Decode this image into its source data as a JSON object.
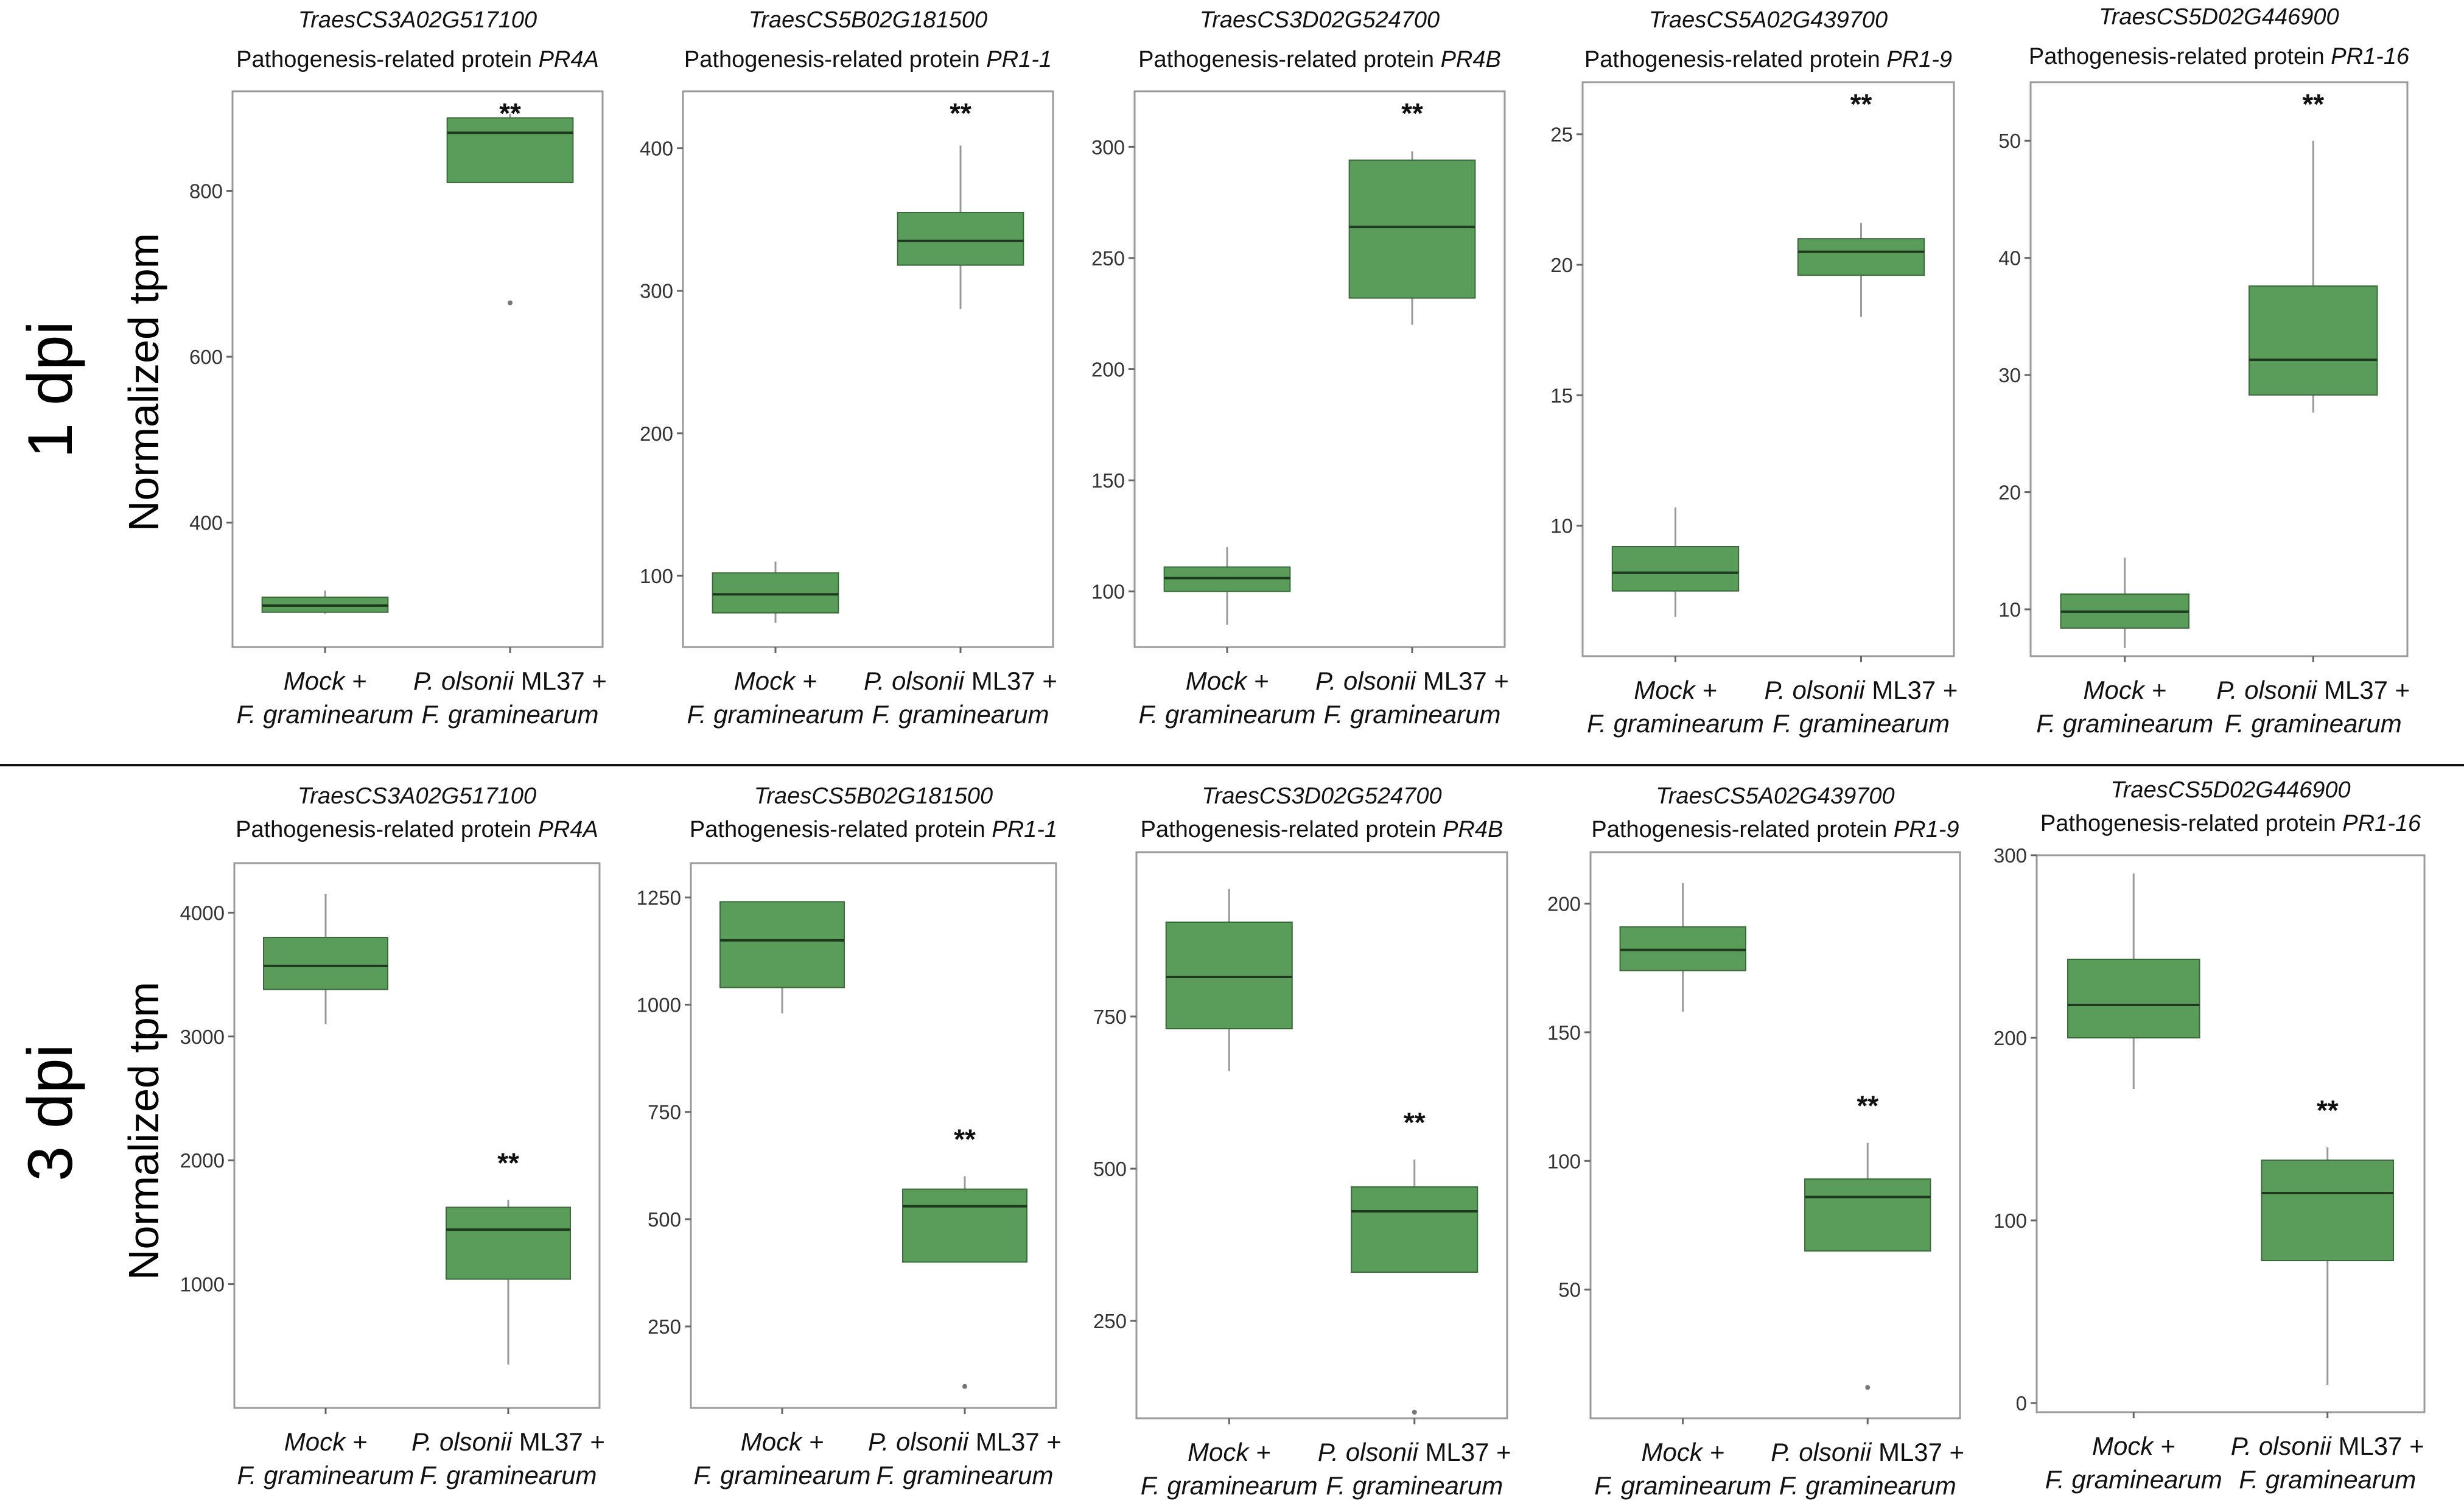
{
  "figure": {
    "row_labels": [
      "1 dpi",
      "3 dpi"
    ],
    "ylabel": "Normalized tpm",
    "box_color": "#5a9c5a",
    "box_edge": "#3a6a3a",
    "divider_color": "#111111"
  },
  "chart_data": [
    {
      "type": "box",
      "title": "TraesCS3A02G517100",
      "subtitle_prefix": "Pathogenesis-related protein ",
      "subtitle_gene": "PR4A",
      "ylim": [
        250,
        920
      ],
      "yticks": [
        400,
        600,
        800
      ],
      "significance": "**",
      "categories": [
        {
          "line1": "Mock +",
          "line2": "F. graminearum"
        },
        {
          "line1_italic": "P. olsonii",
          "line1_rest": " ML37 +",
          "line2": "F. graminearum"
        }
      ],
      "boxes": [
        {
          "min": 290,
          "q1": 292,
          "median": 300,
          "q3": 310,
          "max": 318,
          "outliers": []
        },
        {
          "min": 810,
          "q1": 810,
          "median": 870,
          "q3": 888,
          "max": 893,
          "outliers": [
            665
          ]
        }
      ]
    },
    {
      "type": "box",
      "title": "TraesCS5B02G181500",
      "subtitle_prefix": "Pathogenesis-related protein ",
      "subtitle_gene": "PR1-1",
      "ylim": [
        50,
        440
      ],
      "yticks": [
        100,
        200,
        300,
        400
      ],
      "significance": "**",
      "categories": [
        {
          "line1": "Mock +",
          "line2": "F. graminearum"
        },
        {
          "line1_italic": "P. olsonii",
          "line1_rest": " ML37 +",
          "line2": "F. graminearum"
        }
      ],
      "boxes": [
        {
          "min": 67,
          "q1": 74,
          "median": 87,
          "q3": 102,
          "max": 110,
          "outliers": []
        },
        {
          "min": 287,
          "q1": 318,
          "median": 335,
          "q3": 355,
          "max": 402,
          "outliers": []
        }
      ]
    },
    {
      "type": "box",
      "title": "TraesCS3D02G524700",
      "subtitle_prefix": "Pathogenesis-related protein ",
      "subtitle_gene": "PR4B",
      "ylim": [
        75,
        325
      ],
      "yticks": [
        100,
        150,
        200,
        250,
        300
      ],
      "significance": "**",
      "categories": [
        {
          "line1": "Mock +",
          "line2": "F. graminearum"
        },
        {
          "line1_italic": "P. olsonii",
          "line1_rest": " ML37 +",
          "line2": "F. graminearum"
        }
      ],
      "boxes": [
        {
          "min": 85,
          "q1": 100,
          "median": 106,
          "q3": 111,
          "max": 120,
          "outliers": []
        },
        {
          "min": 220,
          "q1": 232,
          "median": 264,
          "q3": 294,
          "max": 298,
          "outliers": []
        }
      ]
    },
    {
      "type": "box",
      "title": "TraesCS5A02G439700",
      "subtitle_prefix": "Pathogenesis-related protein ",
      "subtitle_gene": "PR1-9",
      "ylim": [
        5,
        27
      ],
      "yticks": [
        10,
        15,
        20,
        25
      ],
      "significance": "**",
      "categories": [
        {
          "line1": "Mock +",
          "line2": "F. graminearum"
        },
        {
          "line1_italic": "P. olsonii",
          "line1_rest": " ML37 +",
          "line2": "F. graminearum"
        }
      ],
      "boxes": [
        {
          "min": 6.5,
          "q1": 7.5,
          "median": 8.2,
          "q3": 9.2,
          "max": 10.7,
          "outliers": []
        },
        {
          "min": 18,
          "q1": 19.6,
          "median": 20.5,
          "q3": 21,
          "max": 21.6,
          "outliers": []
        }
      ]
    },
    {
      "type": "box",
      "title": "TraesCS5D02G446900",
      "subtitle_prefix": "Pathogenesis-related protein ",
      "subtitle_gene": "PR1-16",
      "ylim": [
        6,
        55
      ],
      "yticks": [
        10,
        20,
        30,
        40,
        50
      ],
      "significance": "**",
      "categories": [
        {
          "line1": "Mock +",
          "line2": "F. graminearum"
        },
        {
          "line1_italic": "P. olsonii",
          "line1_rest": " ML37 +",
          "line2": "F. graminearum"
        }
      ],
      "boxes": [
        {
          "min": 6.7,
          "q1": 8.4,
          "median": 9.8,
          "q3": 11.3,
          "max": 14.4,
          "outliers": []
        },
        {
          "min": 26.8,
          "q1": 28.3,
          "median": 31.3,
          "q3": 37.6,
          "max": 50,
          "outliers": []
        }
      ]
    },
    {
      "type": "box",
      "title": "TraesCS3A02G517100",
      "subtitle_prefix": "Pathogenesis-related protein ",
      "subtitle_gene": "PR4A",
      "ylim": [
        0,
        4400
      ],
      "yticks": [
        1000,
        2000,
        3000,
        4000
      ],
      "significance": "**",
      "categories": [
        {
          "line1": "Mock +",
          "line2": "F. graminearum"
        },
        {
          "line1_italic": "P. olsonii",
          "line1_rest": " ML37 +",
          "line2": "F. graminearum"
        }
      ],
      "boxes": [
        {
          "min": 3100,
          "q1": 3380,
          "median": 3570,
          "q3": 3800,
          "max": 4150,
          "outliers": []
        },
        {
          "min": 350,
          "q1": 1040,
          "median": 1440,
          "q3": 1620,
          "max": 1680,
          "outliers": []
        }
      ]
    },
    {
      "type": "box",
      "title": "TraesCS5B02G181500",
      "subtitle_prefix": "Pathogenesis-related protein ",
      "subtitle_gene": "PR1-1",
      "ylim": [
        60,
        1330
      ],
      "yticks": [
        250,
        500,
        750,
        1000,
        1250
      ],
      "significance": "**",
      "categories": [
        {
          "line1": "Mock +",
          "line2": "F. graminearum"
        },
        {
          "line1_italic": "P. olsonii",
          "line1_rest": " ML37 +",
          "line2": "F. graminearum"
        }
      ],
      "boxes": [
        {
          "min": 980,
          "q1": 1040,
          "median": 1150,
          "q3": 1240,
          "max": 1240,
          "outliers": []
        },
        {
          "min": 400,
          "q1": 400,
          "median": 530,
          "q3": 570,
          "max": 600,
          "outliers": [
            110
          ]
        }
      ]
    },
    {
      "type": "box",
      "title": "TraesCS3D02G524700",
      "subtitle_prefix": "Pathogenesis-related protein ",
      "subtitle_gene": "PR4B",
      "ylim": [
        90,
        1020
      ],
      "yticks": [
        250,
        500,
        750
      ],
      "significance": "**",
      "categories": [
        {
          "line1": "Mock +",
          "line2": "F. graminearum"
        },
        {
          "line1_italic": "P. olsonii",
          "line1_rest": " ML37 +",
          "line2": "F. graminearum"
        }
      ],
      "boxes": [
        {
          "min": 660,
          "q1": 730,
          "median": 815,
          "q3": 905,
          "max": 960,
          "outliers": []
        },
        {
          "min": 330,
          "q1": 330,
          "median": 430,
          "q3": 470,
          "max": 515,
          "outliers": [
            100
          ]
        }
      ]
    },
    {
      "type": "box",
      "title": "TraesCS5A02G439700",
      "subtitle_prefix": "Pathogenesis-related protein ",
      "subtitle_gene": "PR1-9",
      "ylim": [
        0,
        220
      ],
      "yticks": [
        50,
        100,
        150,
        200
      ],
      "significance": "**",
      "categories": [
        {
          "line1": "Mock +",
          "line2": "F. graminearum"
        },
        {
          "line1_italic": "P. olsonii",
          "line1_rest": " ML37 +",
          "line2": "F. graminearum"
        }
      ],
      "boxes": [
        {
          "min": 158,
          "q1": 174,
          "median": 182,
          "q3": 191,
          "max": 208,
          "outliers": []
        },
        {
          "min": 65,
          "q1": 65,
          "median": 86,
          "q3": 93,
          "max": 107,
          "outliers": [
            12
          ]
        }
      ]
    },
    {
      "type": "box",
      "title": "TraesCS5D02G446900",
      "subtitle_prefix": "Pathogenesis-related protein ",
      "subtitle_gene": "PR1-16",
      "ylim": [
        -5,
        300
      ],
      "yticks": [
        0,
        100,
        200,
        300
      ],
      "significance": "**",
      "categories": [
        {
          "line1": "Mock +",
          "line2": "F. graminearum"
        },
        {
          "line1_italic": "P. olsonii",
          "line1_rest": " ML37 +",
          "line2": "F. graminearum"
        }
      ],
      "boxes": [
        {
          "min": 172,
          "q1": 200,
          "median": 218,
          "q3": 243,
          "max": 290,
          "outliers": []
        },
        {
          "min": 10,
          "q1": 78,
          "median": 115,
          "q3": 133,
          "max": 140,
          "outliers": []
        }
      ]
    }
  ]
}
